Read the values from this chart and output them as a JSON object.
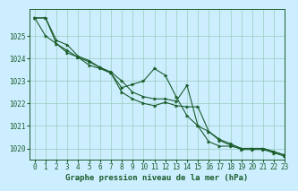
{
  "background_color": "#cceeff",
  "plot_bg_color": "#cceeff",
  "grid_color": "#99ccbb",
  "line_color": "#1a5c2a",
  "xlabel": "Graphe pression niveau de la mer (hPa)",
  "ylim": [
    1019.5,
    1026.2
  ],
  "xlim": [
    -0.5,
    23
  ],
  "yticks": [
    1020,
    1021,
    1022,
    1023,
    1024,
    1025
  ],
  "xticks": [
    0,
    1,
    2,
    3,
    4,
    5,
    6,
    7,
    8,
    9,
    10,
    11,
    12,
    13,
    14,
    15,
    16,
    17,
    18,
    19,
    20,
    21,
    22,
    23
  ],
  "series1": [
    1025.8,
    1025.8,
    1024.8,
    1024.6,
    1024.1,
    1023.9,
    1023.6,
    1023.4,
    1023.0,
    1022.5,
    1022.3,
    1022.2,
    1022.2,
    1022.1,
    1022.8,
    1021.0,
    1020.3,
    1020.1,
    1020.1,
    1020.0,
    1020.0,
    1020.0,
    1019.85,
    1019.7
  ],
  "series2": [
    1025.8,
    1025.0,
    1024.65,
    1024.35,
    1024.05,
    1023.85,
    1023.6,
    1023.35,
    1022.7,
    1022.85,
    1023.0,
    1023.55,
    1023.25,
    1022.3,
    1021.45,
    1021.0,
    1020.75,
    1020.4,
    1020.2,
    1020.0,
    1020.0,
    1020.0,
    1019.85,
    1019.7
  ],
  "series3": [
    1025.8,
    1025.8,
    1024.65,
    1024.25,
    1024.05,
    1023.7,
    1023.55,
    1023.35,
    1022.5,
    1022.2,
    1022.0,
    1021.9,
    1022.05,
    1021.9,
    1021.85,
    1021.85,
    1020.75,
    1020.35,
    1020.15,
    1019.95,
    1019.95,
    1019.95,
    1019.8,
    1019.65
  ],
  "tick_fontsize": 5.5,
  "xlabel_fontsize": 6.5
}
